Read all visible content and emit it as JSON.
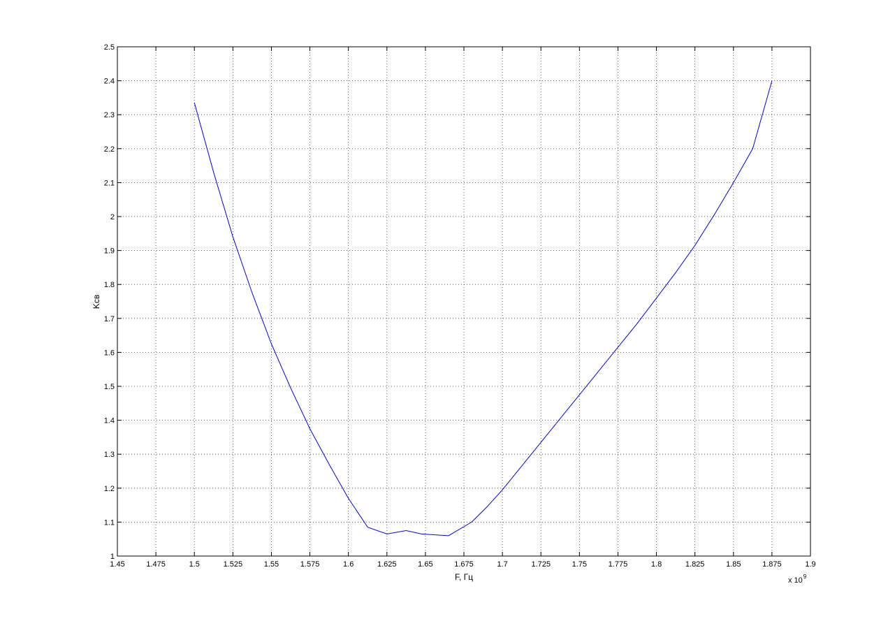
{
  "chart_data": {
    "type": "line",
    "title": "",
    "xlabel": "F, Гц",
    "ylabel": "Kcв",
    "x_multiplier_base": "x 10",
    "x_multiplier_exponent": "9",
    "xlim": [
      1.45,
      1.9
    ],
    "ylim": [
      1.0,
      2.5
    ],
    "grid": true,
    "xticks": [
      "1.45",
      "1.475",
      "1.5",
      "1.525",
      "1.55",
      "1.575",
      "1.6",
      "1.625",
      "1.65",
      "1.675",
      "1.7",
      "1.725",
      "1.75",
      "1.775",
      "1.8",
      "1.825",
      "1.85",
      "1.875",
      "1.9"
    ],
    "yticks": [
      "1",
      "1.1",
      "1.2",
      "1.3",
      "1.4",
      "1.5",
      "1.6",
      "1.7",
      "1.8",
      "1.9",
      "2",
      "2.1",
      "2.2",
      "2.3",
      "2.4",
      "2.5"
    ],
    "series": [
      {
        "color": "#0000ff",
        "x": [
          1.5,
          1.5125,
          1.525,
          1.5375,
          1.55,
          1.5625,
          1.575,
          1.5875,
          1.6,
          1.6125,
          1.625,
          1.6375,
          1.6475,
          1.665,
          1.68,
          1.69,
          1.7,
          1.7125,
          1.725,
          1.7375,
          1.75,
          1.7625,
          1.775,
          1.7875,
          1.8,
          1.8125,
          1.825,
          1.8375,
          1.85,
          1.8625,
          1.875
        ],
        "y": [
          2.335,
          2.13,
          1.94,
          1.775,
          1.625,
          1.495,
          1.375,
          1.27,
          1.17,
          1.085,
          1.065,
          1.075,
          1.065,
          1.06,
          1.1,
          1.145,
          1.195,
          1.265,
          1.335,
          1.405,
          1.475,
          1.545,
          1.615,
          1.685,
          1.76,
          1.835,
          1.915,
          2.005,
          2.1,
          2.2,
          2.4
        ]
      }
    ]
  }
}
